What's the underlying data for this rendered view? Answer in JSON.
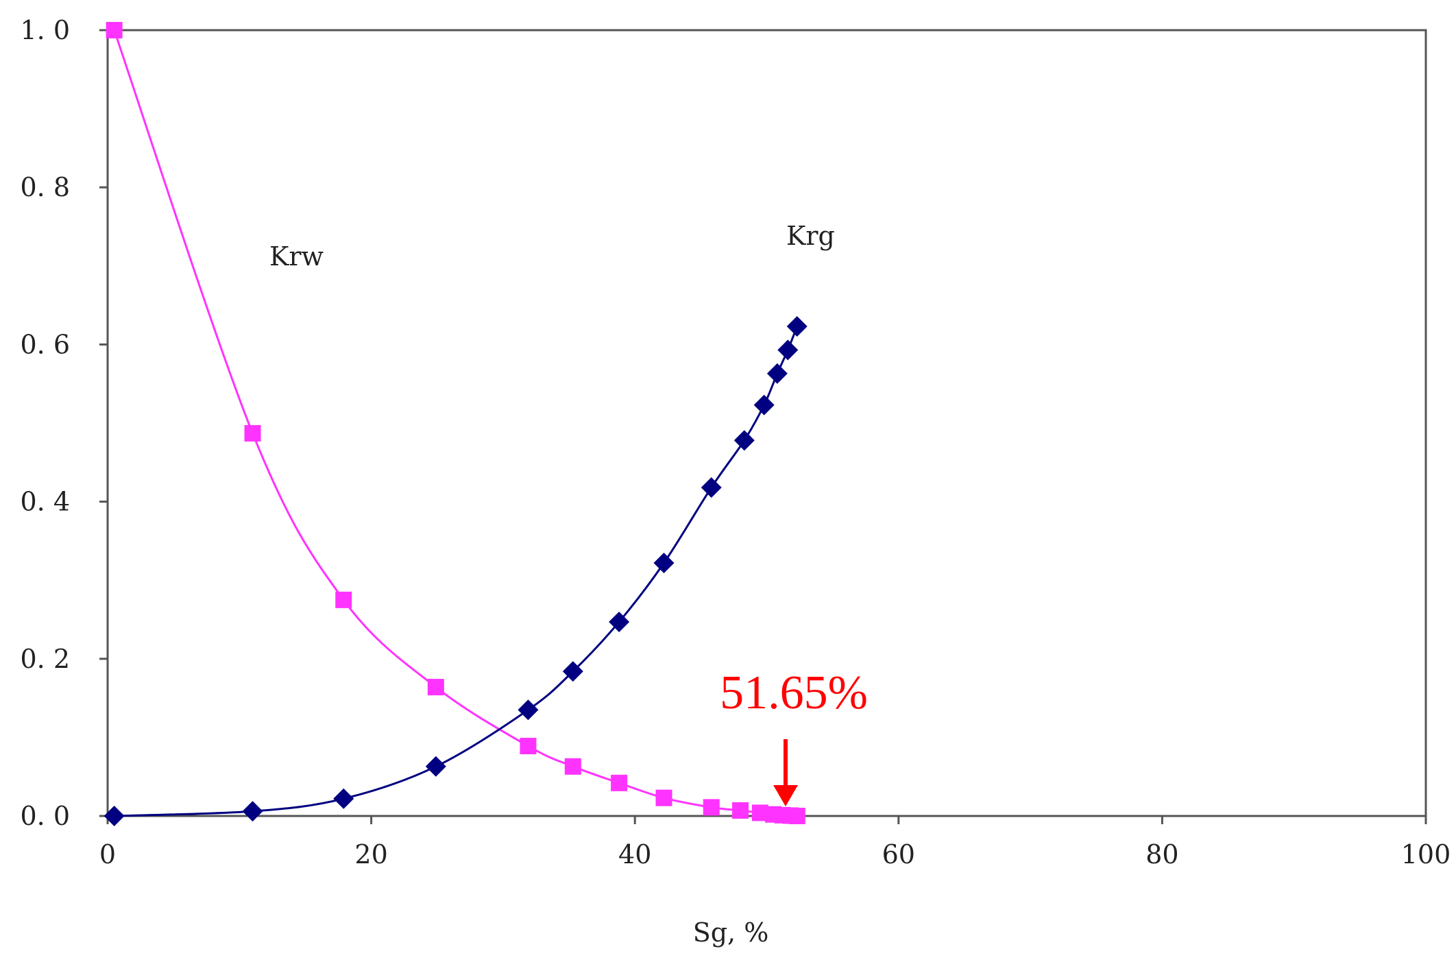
{
  "chart_data": {
    "type": "line",
    "xlabel": "Sg, %",
    "ylabel": "",
    "xlim": [
      0,
      100
    ],
    "ylim": [
      0,
      1.0
    ],
    "x_ticks": [
      "0",
      "20",
      "40",
      "60",
      "80",
      "100"
    ],
    "y_ticks": [
      "0. 0",
      "0. 2",
      "0. 4",
      "0. 6",
      "0. 8",
      "1. 0"
    ],
    "grid": false,
    "legend": "none",
    "series": [
      {
        "name": "Krw",
        "color": "#ff33ff",
        "marker": "square",
        "x": [
          0.5,
          11.0,
          17.9,
          24.9,
          31.9,
          35.3,
          38.8,
          42.2,
          45.8,
          48.0,
          49.5,
          50.5,
          51.2,
          51.8,
          52.3
        ],
        "y": [
          1.0,
          0.487,
          0.275,
          0.164,
          0.089,
          0.063,
          0.042,
          0.023,
          0.011,
          0.007,
          0.004,
          0.002,
          0.001,
          0.0005,
          0.0
        ]
      },
      {
        "name": "Krg",
        "color": "#000080",
        "marker": "diamond",
        "x": [
          0.5,
          11.0,
          17.9,
          24.9,
          31.9,
          35.3,
          38.8,
          42.2,
          45.8,
          48.3,
          49.8,
          50.8,
          51.6,
          52.3
        ],
        "y": [
          0.0,
          0.006,
          0.022,
          0.063,
          0.135,
          0.184,
          0.247,
          0.322,
          0.418,
          0.478,
          0.523,
          0.563,
          0.593,
          0.623
        ]
      }
    ],
    "annotations": [
      {
        "text": "51.65%",
        "x": 51.65,
        "y": 0.0,
        "color": "#ff0000",
        "arrow": "down"
      }
    ]
  }
}
